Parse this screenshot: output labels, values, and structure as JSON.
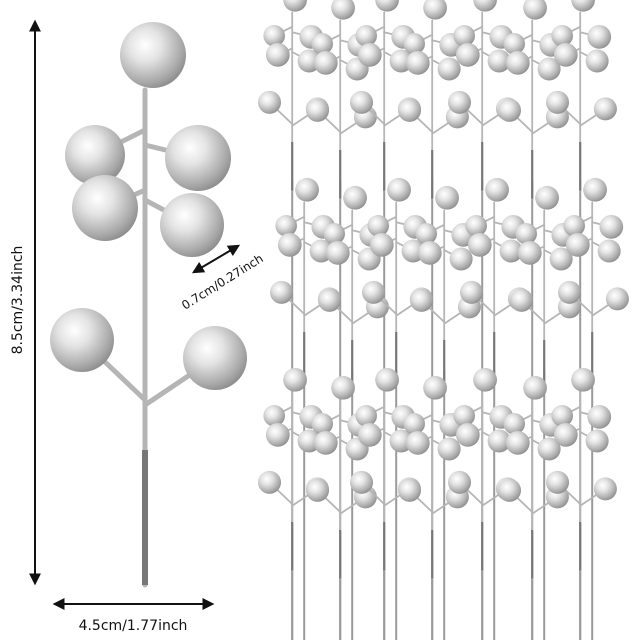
{
  "product": {
    "description_icon": "silver-berry-pick",
    "colors": {
      "berry": "#c8c8c8",
      "stem": "#b8b8b8",
      "text": "#111111"
    }
  },
  "dimensions": {
    "height_label": "8.5cm/3.34inch",
    "width_label": "4.5cm/1.77inch",
    "berry_label": "0.7cm/0.27inch"
  }
}
